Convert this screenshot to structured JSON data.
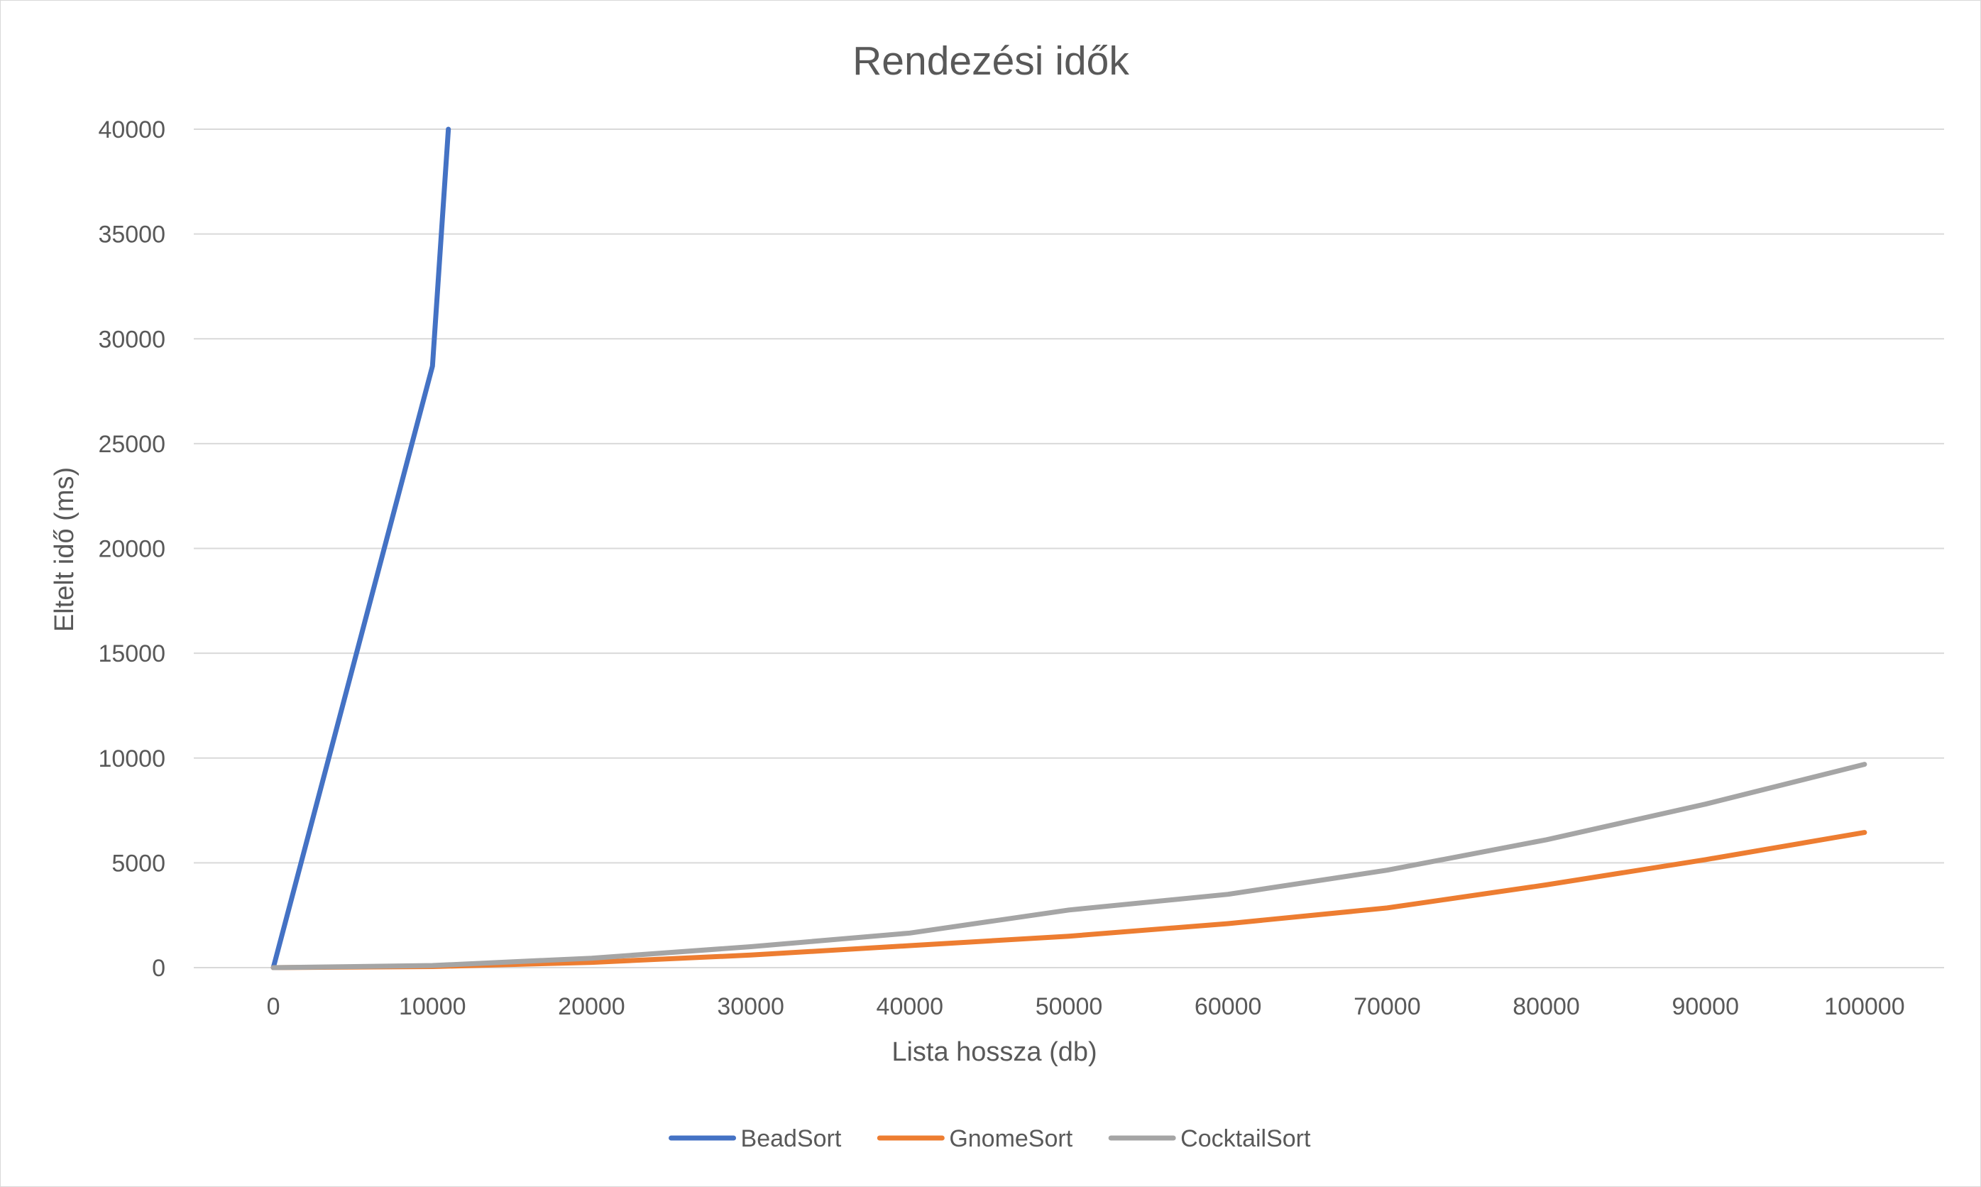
{
  "chart_data": {
    "type": "line",
    "title": "Rendezési idők",
    "xlabel": "Lista hossza (db)",
    "ylabel": "Eltelt idő (ms)",
    "categories": [
      0,
      10000,
      20000,
      30000,
      40000,
      50000,
      60000,
      70000,
      80000,
      90000,
      100000
    ],
    "x_ticks": [
      "0",
      "10000",
      "20000",
      "30000",
      "40000",
      "50000",
      "60000",
      "70000",
      "80000",
      "90000",
      "100000"
    ],
    "ylim": [
      0,
      40000
    ],
    "y_ticks": [
      "0",
      "5000",
      "10000",
      "15000",
      "20000",
      "25000",
      "30000",
      "35000",
      "40000"
    ],
    "grid": true,
    "legend_position": "bottom",
    "series": [
      {
        "name": "BeadSort",
        "color": "#4472c4",
        "x": [
          0,
          10000,
          11000
        ],
        "values": [
          0,
          28700,
          40000
        ]
      },
      {
        "name": "GnomeSort",
        "color": "#ed7d31",
        "x": [
          0,
          10000,
          20000,
          30000,
          40000,
          50000,
          60000,
          70000,
          80000,
          90000,
          100000
        ],
        "values": [
          0,
          50,
          250,
          600,
          1050,
          1500,
          2100,
          2850,
          3950,
          5150,
          6450
        ]
      },
      {
        "name": "CocktailSort",
        "color": "#a5a5a5",
        "x": [
          0,
          10000,
          20000,
          30000,
          40000,
          50000,
          60000,
          70000,
          80000,
          90000,
          100000
        ],
        "values": [
          0,
          100,
          450,
          1000,
          1650,
          2750,
          3500,
          4650,
          6100,
          7800,
          9700
        ]
      }
    ]
  }
}
